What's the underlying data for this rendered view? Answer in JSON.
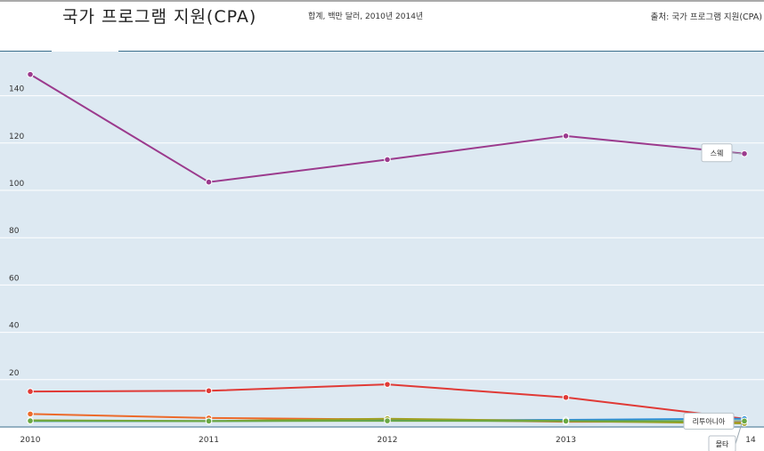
{
  "header": {
    "title": "국가 프로그램 지원(CPA)",
    "subtitle": "합계, 백만 달러, 2010년 2014년",
    "source": "출처: 국가 프로그램 지원(CPA)"
  },
  "colors": {
    "plot_background": "#dde9f2",
    "grid": "#ffffff",
    "axis": "#3a6e8c"
  },
  "chart_data": {
    "type": "line",
    "x": [
      "2010",
      "2011",
      "2012",
      "2013",
      "2014"
    ],
    "x_tick_labels": [
      "2010",
      "2011",
      "2012",
      "2013",
      "14"
    ],
    "ylim": [
      0,
      150
    ],
    "yticks": [
      20,
      40,
      60,
      80,
      100,
      120,
      140
    ],
    "grid": true,
    "series": [
      {
        "name": "스웨",
        "color": "#9b3a8d",
        "values": [
          149,
          103.5,
          113,
          123,
          115.5
        ]
      },
      {
        "name": "",
        "color": "#e03a36",
        "values": [
          15,
          15.3,
          18,
          12.5,
          3.5
        ]
      },
      {
        "name": "",
        "color": "#ec6a2a",
        "values": [
          5.5,
          3.8,
          3.2,
          2.2,
          2.2
        ]
      },
      {
        "name": "",
        "color": "#2e8fd6",
        "values": [
          2.5,
          2.5,
          2.8,
          3,
          3.5
        ]
      },
      {
        "name": "",
        "color": "#a0a020",
        "values": [
          2.8,
          2.5,
          3.5,
          2.5,
          1.5
        ]
      },
      {
        "name": "리투아니아",
        "color": "#6aa844",
        "values": [
          2.6,
          2.5,
          2.6,
          2.5,
          2.5
        ]
      }
    ],
    "annotations": [
      {
        "series_index": 0,
        "label": "스웨"
      },
      {
        "series_index": 5,
        "label": "리투아니아"
      },
      {
        "series_index": 4,
        "label": "몰타"
      }
    ]
  }
}
